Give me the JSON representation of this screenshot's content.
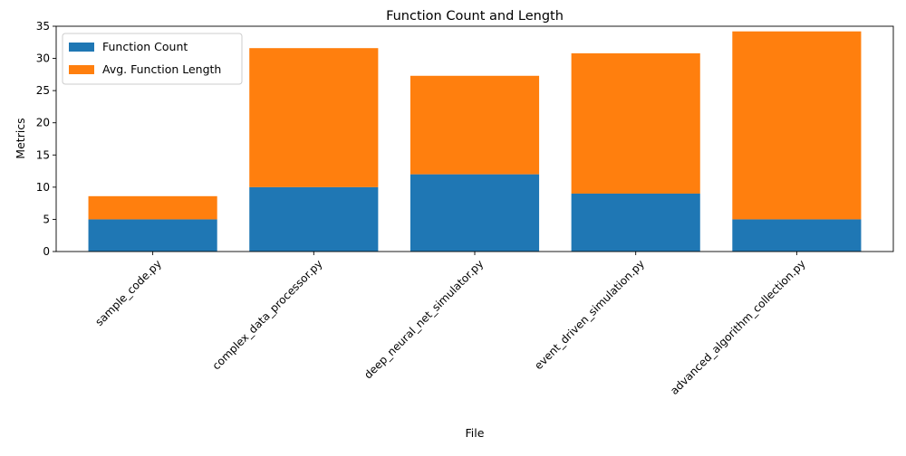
{
  "chart_data": {
    "type": "bar",
    "stacked": true,
    "title": "Function Count and Length",
    "xlabel": "File",
    "ylabel": "Metrics",
    "categories": [
      "sample_code.py",
      "complex_data_processor.py",
      "deep_neural_net_simulator.py",
      "event_driven_simulation.py",
      "advanced_algorithm_collection.py"
    ],
    "series": [
      {
        "name": "Function Count",
        "color": "#1f77b4",
        "values": [
          5,
          10,
          12,
          9,
          5
        ]
      },
      {
        "name": "Avg. Function Length",
        "color": "#ff7f0e",
        "values": [
          3.6,
          21.6,
          15.3,
          21.8,
          29.2
        ]
      }
    ],
    "ylim": [
      0,
      35
    ],
    "yticks": [
      0,
      5,
      10,
      15,
      20,
      25,
      30,
      35
    ],
    "xtick_rotation": 45,
    "grid": false,
    "legend_position": "top-left"
  }
}
